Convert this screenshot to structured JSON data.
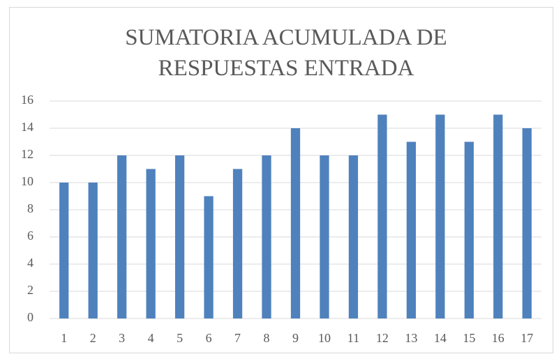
{
  "chart_data": {
    "type": "bar",
    "title": "SUMATORIA ACUMULADA DE RESPUESTAS ENTRADA",
    "categories": [
      "1",
      "2",
      "3",
      "4",
      "5",
      "6",
      "7",
      "8",
      "9",
      "10",
      "11",
      "12",
      "13",
      "14",
      "15",
      "16",
      "17"
    ],
    "values": [
      10,
      10,
      12,
      11,
      12,
      9,
      11,
      12,
      14,
      12,
      12,
      15,
      13,
      15,
      13,
      15,
      14
    ],
    "color": "#4f81bd",
    "ylim": [
      0,
      16
    ],
    "yticks": [
      0,
      2,
      4,
      6,
      8,
      10,
      12,
      14,
      16
    ],
    "grid": true
  }
}
